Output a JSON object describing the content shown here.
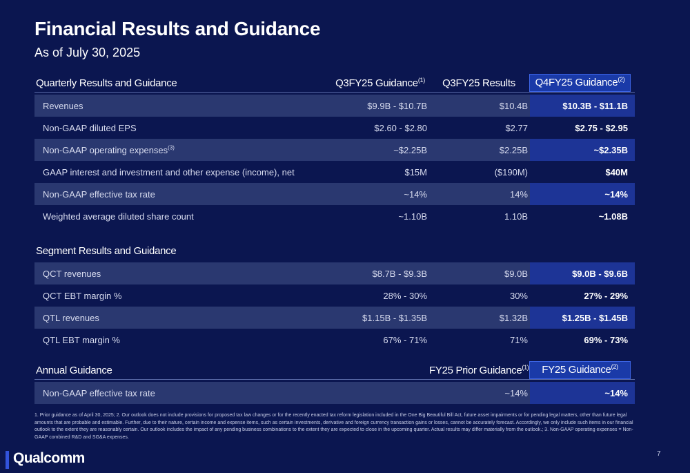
{
  "page": {
    "title": "Financial Results and Guidance",
    "subtitle": "As of July 30, 2025",
    "page_number": "7"
  },
  "quarterly": {
    "title": "Quarterly Results and Guidance",
    "columns": [
      {
        "label": "Q3FY25 Guidance",
        "sup": "(1)"
      },
      {
        "label": "Q3FY25 Results",
        "sup": ""
      },
      {
        "label": "Q4FY25 Guidance",
        "sup": "(2)"
      }
    ],
    "rows": [
      {
        "label": "Revenues",
        "sup": "",
        "c1": "$9.9B - $10.7B",
        "c2": "$10.4B",
        "c3": "$10.3B - $11.1B"
      },
      {
        "label": "Non-GAAP diluted EPS",
        "sup": "",
        "c1": "$2.60 - $2.80",
        "c2": "$2.77",
        "c3": "$2.75 - $2.95"
      },
      {
        "label": "Non-GAAP operating expenses",
        "sup": "(3)",
        "c1": "~$2.25B",
        "c2": "$2.25B",
        "c3": "~$2.35B"
      },
      {
        "label": "GAAP interest and investment and other expense (income), net",
        "sup": "",
        "c1": "$15M",
        "c2": "($190M)",
        "c3": "$40M"
      },
      {
        "label": "Non-GAAP effective tax rate",
        "sup": "",
        "c1": "~14%",
        "c2": "14%",
        "c3": "~14%"
      },
      {
        "label": "Weighted average diluted share count",
        "sup": "",
        "c1": "~1.10B",
        "c2": "1.10B",
        "c3": "~1.08B"
      }
    ]
  },
  "segment": {
    "title": "Segment Results and Guidance",
    "rows": [
      {
        "label": "QCT revenues",
        "c1": "$8.7B - $9.3B",
        "c2": "$9.0B",
        "c3": "$9.0B - $9.6B"
      },
      {
        "label": "QCT EBT margin %",
        "c1": "28% - 30%",
        "c2": "30%",
        "c3": "27% - 29%"
      },
      {
        "label": "QTL revenues",
        "c1": "$1.15B - $1.35B",
        "c2": "$1.32B",
        "c3": "$1.25B - $1.45B"
      },
      {
        "label": "QTL EBT margin %",
        "c1": "67% - 71%",
        "c2": "71%",
        "c3": "69% - 73%"
      }
    ]
  },
  "annual": {
    "title": "Annual Guidance",
    "columns": [
      {
        "label": "FY25 Prior Guidance",
        "sup": "(1)"
      },
      {
        "label": "FY25 Guidance",
        "sup": "(2)"
      }
    ],
    "rows": [
      {
        "label": "Non-GAAP effective tax rate",
        "c2": "~14%",
        "c3": "~14%"
      }
    ]
  },
  "footnote": "1. Prior guidance as of April 30, 2025; 2. Our outlook does not include provisions for proposed tax law changes or for the recently enacted tax reform legislation included in the One Big Beautiful Bill Act, future asset impairments or for pending legal matters, other than future legal amounts that are probable and estimable. Further, due to their nature, certain income and expense items, such as certain investments, derivative and foreign currency transaction gains or losses, cannot be accurately forecast. Accordingly, we only include such items in our financial outlook to the extent they are reasonably certain. Our outlook includes the impact of any pending business combinations to the extent they are expected to close in the upcoming quarter. Actual results may differ materially from the outlook.; 3. Non-GAAP operating expenses = Non-GAAP combined R&D and SG&A expenses.",
  "logo": {
    "text": "Qualcomm"
  },
  "colors": {
    "background": "#0b1650",
    "row_shade": "#2a3870",
    "highlight": "#1d3496",
    "highlight_border": "#3c64e6",
    "brand_bar": "#3253dc"
  }
}
